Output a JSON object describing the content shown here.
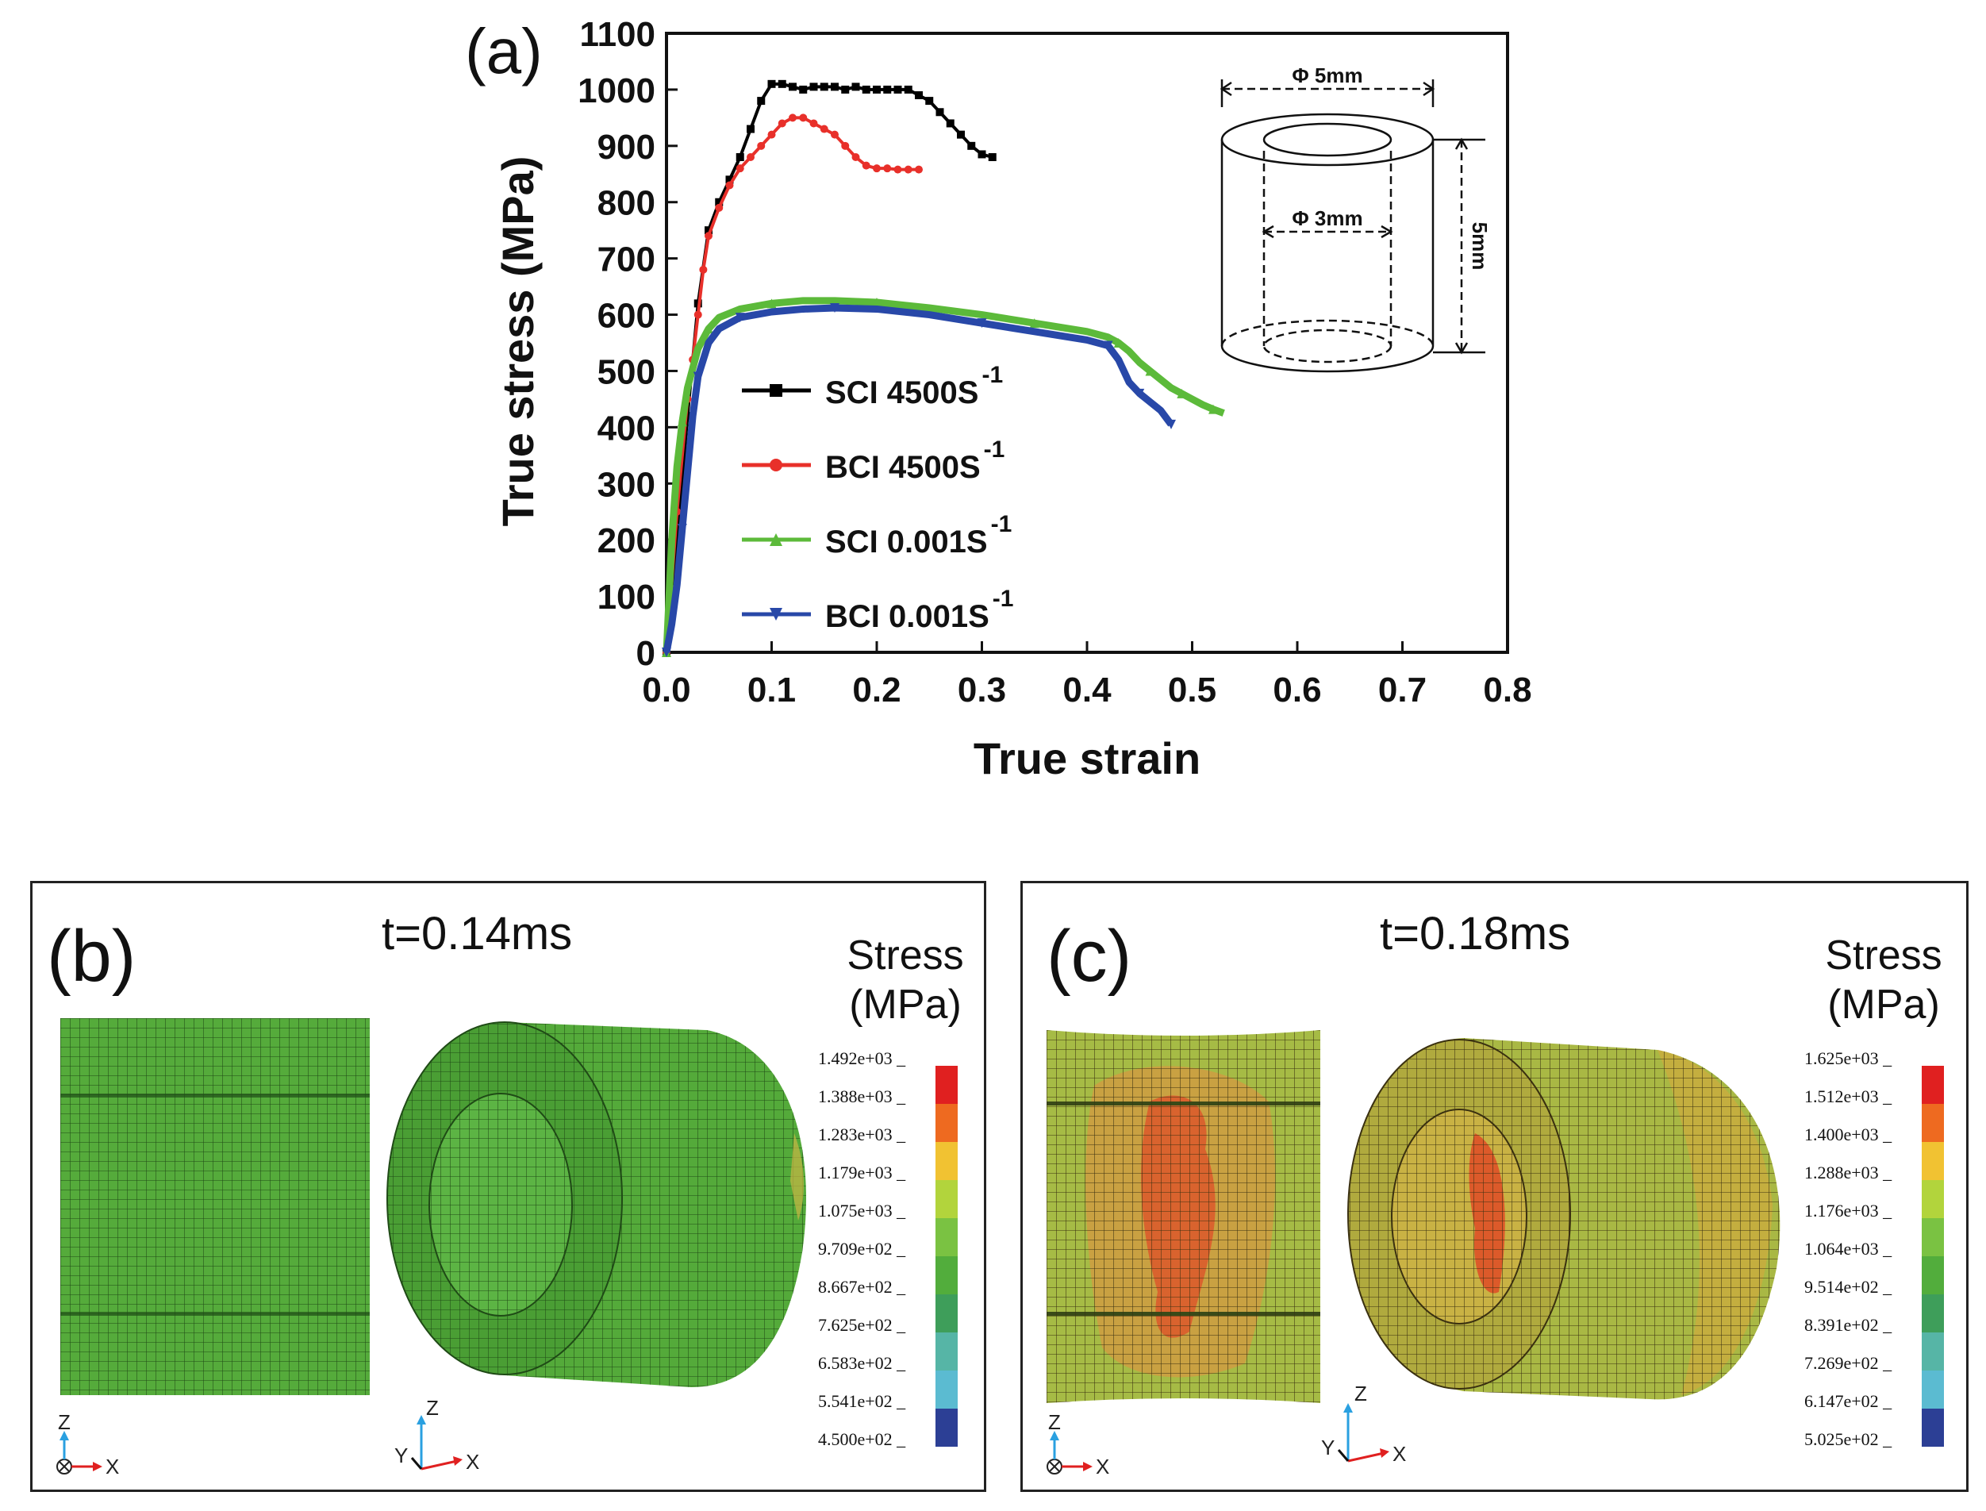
{
  "chart_data": {
    "type": "line",
    "panel_label": "(a)",
    "xlabel": "True strain",
    "ylabel": "True stress (MPa)",
    "xlim": [
      0.0,
      0.8
    ],
    "ylim": [
      0,
      1100
    ],
    "x_ticks": [
      "0.0",
      "0.1",
      "0.2",
      "0.3",
      "0.4",
      "0.5",
      "0.6",
      "0.7",
      "0.8"
    ],
    "y_ticks": [
      "0",
      "100",
      "200",
      "300",
      "400",
      "500",
      "600",
      "700",
      "800",
      "900",
      "1000",
      "1100"
    ],
    "legend": [
      "SCI 4500S",
      "BCI 4500S",
      "SCI 0.001S",
      "BCI 0.001S"
    ],
    "legend_sup": "-1",
    "series": [
      {
        "name": "SCI 4500S-1",
        "color": "#000000",
        "marker": "square",
        "x": [
          0,
          0.01,
          0.02,
          0.03,
          0.04,
          0.05,
          0.06,
          0.07,
          0.08,
          0.09,
          0.1,
          0.11,
          0.12,
          0.13,
          0.14,
          0.15,
          0.16,
          0.17,
          0.18,
          0.19,
          0.2,
          0.21,
          0.22,
          0.23,
          0.24,
          0.25,
          0.26,
          0.27,
          0.28,
          0.29,
          0.3,
          0.31
        ],
        "y": [
          0,
          200,
          420,
          620,
          750,
          800,
          840,
          880,
          930,
          980,
          1010,
          1010,
          1005,
          1000,
          1005,
          1005,
          1005,
          1000,
          1005,
          1000,
          1000,
          1000,
          1000,
          1000,
          990,
          980,
          960,
          940,
          920,
          900,
          885,
          880
        ]
      },
      {
        "name": "BCI 4500S-1",
        "color": "#e8302a",
        "marker": "circle",
        "x": [
          0,
          0.01,
          0.02,
          0.025,
          0.03,
          0.035,
          0.04,
          0.05,
          0.06,
          0.07,
          0.08,
          0.09,
          0.1,
          0.11,
          0.12,
          0.13,
          0.14,
          0.15,
          0.16,
          0.17,
          0.18,
          0.19,
          0.2,
          0.21,
          0.22,
          0.23,
          0.24
        ],
        "y": [
          0,
          250,
          450,
          520,
          600,
          680,
          740,
          790,
          830,
          860,
          880,
          900,
          920,
          940,
          950,
          950,
          940,
          930,
          920,
          900,
          880,
          865,
          860,
          860,
          858,
          858,
          858
        ]
      },
      {
        "name": "SCI 0.001S-1",
        "color": "#5cba3a",
        "marker": "triangle-up",
        "x": [
          0,
          0.005,
          0.01,
          0.015,
          0.02,
          0.03,
          0.04,
          0.05,
          0.07,
          0.1,
          0.13,
          0.16,
          0.2,
          0.25,
          0.3,
          0.35,
          0.4,
          0.42,
          0.43,
          0.44,
          0.45,
          0.46,
          0.47,
          0.48,
          0.49,
          0.5,
          0.51,
          0.52,
          0.53
        ],
        "y": [
          0,
          200,
          330,
          410,
          470,
          540,
          575,
          595,
          610,
          620,
          625,
          625,
          622,
          612,
          600,
          585,
          570,
          560,
          550,
          535,
          515,
          500,
          485,
          470,
          460,
          450,
          440,
          432,
          425
        ]
      },
      {
        "name": "BCI 0.001S-1",
        "color": "#2848a8",
        "marker": "triangle-down",
        "x": [
          0,
          0.005,
          0.01,
          0.015,
          0.02,
          0.025,
          0.03,
          0.04,
          0.05,
          0.07,
          0.1,
          0.13,
          0.16,
          0.2,
          0.25,
          0.3,
          0.35,
          0.4,
          0.42,
          0.43,
          0.44,
          0.45,
          0.46,
          0.47,
          0.48
        ],
        "y": [
          0,
          50,
          120,
          220,
          320,
          420,
          490,
          550,
          575,
          595,
          605,
          610,
          612,
          610,
          600,
          585,
          570,
          555,
          545,
          520,
          480,
          460,
          445,
          430,
          405
        ]
      }
    ],
    "inset": {
      "outer_dia": "Φ 5mm",
      "inner_dia": "Φ 3mm",
      "height": "5mm"
    }
  },
  "panel_b": {
    "label": "(b)",
    "time": "t=0.14ms",
    "stress_title": [
      "Stress",
      "(MPa)"
    ],
    "legend_values": [
      "1.492e+03",
      "1.388e+03",
      "1.283e+03",
      "1.179e+03",
      "1.075e+03",
      "9.709e+02",
      "8.667e+02",
      "7.625e+02",
      "6.583e+02",
      "5.541e+02",
      "4.500e+02"
    ],
    "axes_flat": [
      "Z",
      "X"
    ],
    "axes_iso": [
      "Z",
      "Y",
      "X"
    ]
  },
  "panel_c": {
    "label": "(c)",
    "time": "t=0.18ms",
    "stress_title": [
      "Stress",
      "(MPa)"
    ],
    "legend_values": [
      "1.625e+03",
      "1.512e+03",
      "1.400e+03",
      "1.288e+03",
      "1.176e+03",
      "1.064e+03",
      "9.514e+02",
      "8.391e+02",
      "7.269e+02",
      "6.147e+02",
      "5.025e+02"
    ],
    "axes_flat": [
      "Z",
      "X"
    ],
    "axes_iso": [
      "Z",
      "Y",
      "X"
    ]
  },
  "legend_colors": [
    "#e02020",
    "#ee6a20",
    "#f1c232",
    "#b2d43c",
    "#7ac242",
    "#52ad3c",
    "#3e9e5a",
    "#56b5a6",
    "#5bbbd1",
    "#3e74b8",
    "#2c3f95"
  ],
  "colors": {
    "mesh_green": "#52a93a",
    "mesh_hot": "#d95a2a",
    "mesh_warm": "#c9b346"
  }
}
